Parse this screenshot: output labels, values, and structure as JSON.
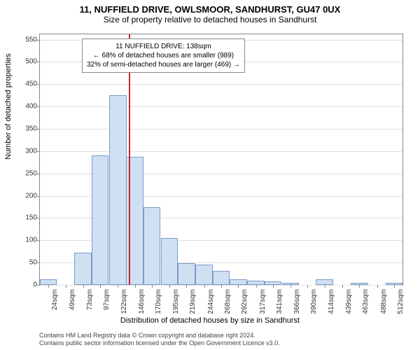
{
  "title": "11, NUFFIELD DRIVE, OWLSMOOR, SANDHURST, GU47 0UX",
  "subtitle": "Size of property relative to detached houses in Sandhurst",
  "ylabel": "Number of detached properties",
  "xlabel": "Distribution of detached houses by size in Sandhurst",
  "footer_line1": "Contains HM Land Registry data © Crown copyright and database right 2024.",
  "footer_line2": "Contains public sector information licensed under the Open Government Licence v3.0.",
  "annotation": {
    "line1": "11 NUFFIELD DRIVE: 138sqm",
    "line2": "← 68% of detached houses are smaller (989)",
    "line3": "32% of semi-detached houses are larger (469) →"
  },
  "chart": {
    "type": "histogram",
    "bar_fill": "#cfe0f3",
    "bar_stroke": "#7a9ac9",
    "grid_color": "#e0e0e0",
    "vline_color": "#c1272d",
    "vline_x_sqm": 138,
    "x_min_sqm": 12,
    "x_max_sqm": 524,
    "ylim": [
      0,
      562
    ],
    "yticks": [
      0,
      50,
      100,
      150,
      200,
      250,
      300,
      350,
      400,
      450,
      500,
      550
    ],
    "xtick_labels": [
      "24sqm",
      "49sqm",
      "73sqm",
      "97sqm",
      "122sqm",
      "146sqm",
      "170sqm",
      "195sqm",
      "219sqm",
      "244sqm",
      "268sqm",
      "292sqm",
      "317sqm",
      "341sqm",
      "366sqm",
      "390sqm",
      "414sqm",
      "439sqm",
      "463sqm",
      "488sqm",
      "512sqm"
    ],
    "xtick_positions_sqm": [
      24,
      49,
      73,
      97,
      122,
      146,
      170,
      195,
      219,
      244,
      268,
      292,
      317,
      341,
      366,
      390,
      414,
      439,
      463,
      488,
      512
    ],
    "bars": [
      {
        "x_sqm": 24,
        "value": 12
      },
      {
        "x_sqm": 49,
        "value": 0
      },
      {
        "x_sqm": 73,
        "value": 72
      },
      {
        "x_sqm": 97,
        "value": 290
      },
      {
        "x_sqm": 122,
        "value": 425
      },
      {
        "x_sqm": 146,
        "value": 288
      },
      {
        "x_sqm": 170,
        "value": 175
      },
      {
        "x_sqm": 195,
        "value": 105
      },
      {
        "x_sqm": 219,
        "value": 48
      },
      {
        "x_sqm": 244,
        "value": 45
      },
      {
        "x_sqm": 268,
        "value": 32
      },
      {
        "x_sqm": 292,
        "value": 12
      },
      {
        "x_sqm": 317,
        "value": 10
      },
      {
        "x_sqm": 341,
        "value": 8
      },
      {
        "x_sqm": 366,
        "value": 4
      },
      {
        "x_sqm": 390,
        "value": 0
      },
      {
        "x_sqm": 414,
        "value": 12
      },
      {
        "x_sqm": 439,
        "value": 0
      },
      {
        "x_sqm": 463,
        "value": 4
      },
      {
        "x_sqm": 488,
        "value": 0
      },
      {
        "x_sqm": 512,
        "value": 4
      }
    ],
    "bar_width_sqm": 24.4
  }
}
